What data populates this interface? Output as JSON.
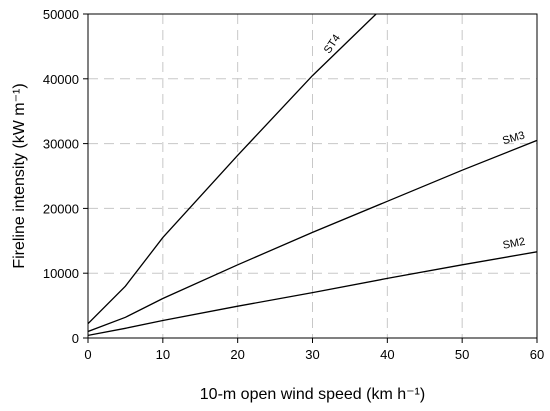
{
  "chart_data": {
    "type": "line",
    "title": "",
    "xlabel": "10-m open wind speed (km h⁻¹)",
    "ylabel": "Fireline intensity (kW m⁻¹)",
    "xlim": [
      0,
      60
    ],
    "ylim": [
      0,
      50000
    ],
    "xticks": [
      0,
      10,
      20,
      30,
      40,
      50,
      60
    ],
    "yticks": [
      0,
      10000,
      20000,
      30000,
      40000,
      50000
    ],
    "grid": true,
    "series": [
      {
        "name": "ST4",
        "x": [
          0,
          5,
          10,
          20,
          30,
          38.5
        ],
        "y": [
          2200,
          8000,
          15500,
          28200,
          40500,
          50000
        ]
      },
      {
        "name": "SM3",
        "x": [
          0,
          5,
          10,
          20,
          30,
          40,
          50,
          60
        ],
        "y": [
          1000,
          3200,
          6100,
          11300,
          16300,
          21100,
          25900,
          30500
        ]
      },
      {
        "name": "SM2",
        "x": [
          0,
          5,
          10,
          20,
          30,
          40,
          50,
          60
        ],
        "y": [
          400,
          1500,
          2700,
          4900,
          7000,
          9200,
          11300,
          13300
        ]
      }
    ]
  }
}
